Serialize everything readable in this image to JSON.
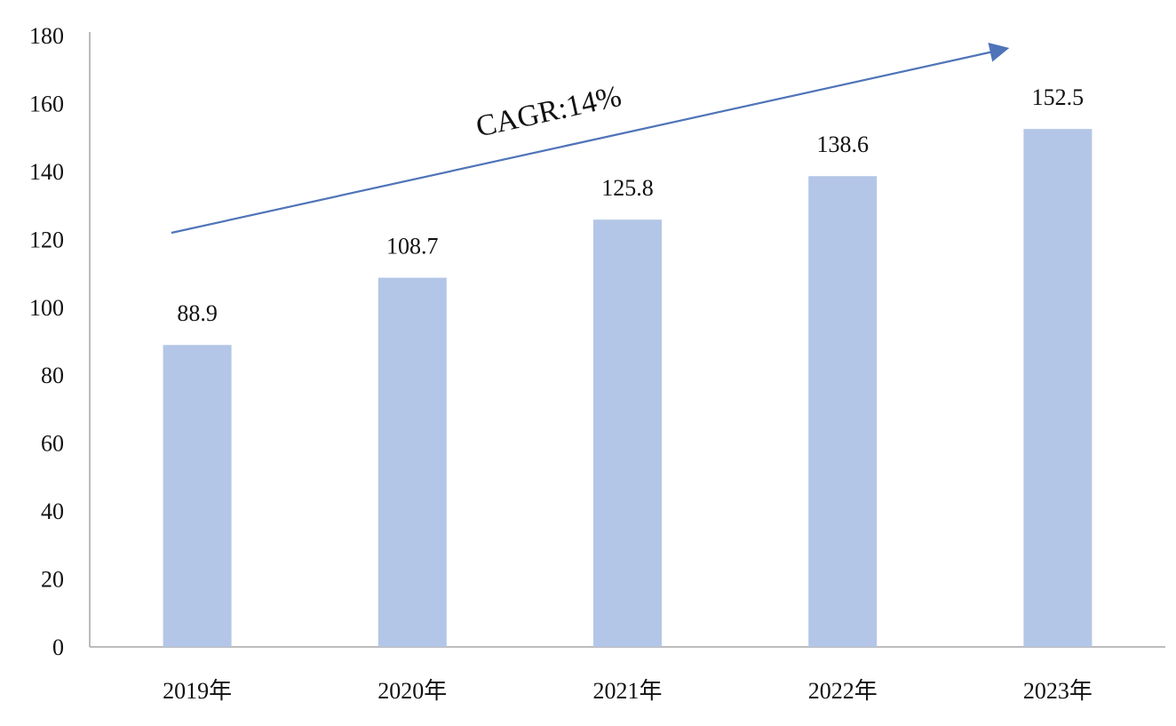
{
  "chart_data": {
    "type": "bar",
    "categories": [
      "2019年",
      "2020年",
      "2021年",
      "2022年",
      "2023年"
    ],
    "series": [
      {
        "values": [
          88.9,
          108.7,
          125.8,
          138.6,
          152.5
        ],
        "data_labels": [
          "88.9",
          "108.7",
          "125.8",
          "138.6",
          "152.5"
        ]
      }
    ],
    "yticks": [
      "0",
      "20",
      "40",
      "60",
      "80",
      "100",
      "120",
      "140",
      "160",
      "180"
    ],
    "ylim": [
      0,
      180
    ],
    "grid": false,
    "legend": false,
    "annotation": {
      "text": "CAGR:14%"
    },
    "colors": {
      "bar": "#b4c6e7",
      "arrow": "#4f74b8",
      "axis": "#a6a6a6"
    }
  }
}
